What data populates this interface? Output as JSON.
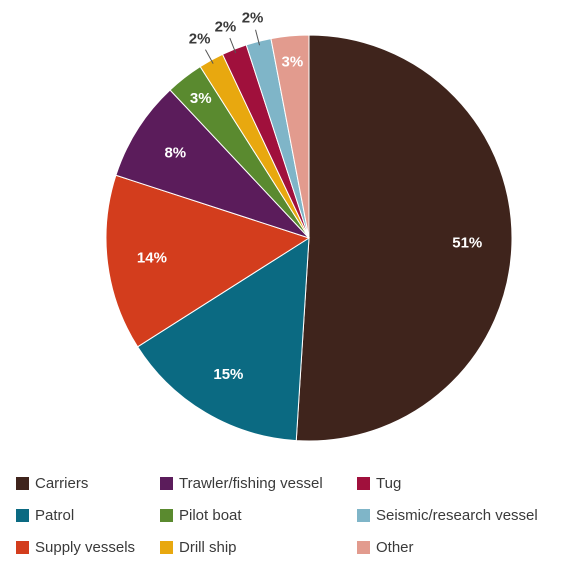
{
  "chart_data": {
    "type": "pie",
    "title": "",
    "start_angle_deg": 0,
    "direction": "clockwise",
    "slices": [
      {
        "label": "Carriers",
        "value": 51,
        "display": "51%",
        "color": "#3f241c"
      },
      {
        "label": "Patrol",
        "value": 15,
        "display": "15%",
        "color": "#0b6a82"
      },
      {
        "label": "Supply vessels",
        "value": 14,
        "display": "14%",
        "color": "#d33d1d"
      },
      {
        "label": "Trawler/fishing vessel",
        "value": 8,
        "display": "8%",
        "color": "#5b1c5b"
      },
      {
        "label": "Pilot boat",
        "value": 3,
        "display": "3%",
        "color": "#5a8a2f"
      },
      {
        "label": "Drill ship",
        "value": 2,
        "display": "2%",
        "color": "#e8a80f"
      },
      {
        "label": "Tug",
        "value": 2,
        "display": "2%",
        "color": "#a0103c"
      },
      {
        "label": "Seismic/research vessel",
        "value": 2,
        "display": "2%",
        "color": "#7fb5c8"
      },
      {
        "label": "Other",
        "value": 3,
        "display": "3%",
        "color": "#e29b8e"
      }
    ],
    "legend_placement": "bottom",
    "legend_order": [
      "Carriers",
      "Trawler/fishing vessel",
      "Tug",
      "Patrol",
      "Pilot boat",
      "Seismic/research vessel",
      "Supply vessels",
      "Drill ship",
      "Other"
    ],
    "label_color_dark": "#3a3a3a",
    "label_color_light": "#ffffff"
  }
}
